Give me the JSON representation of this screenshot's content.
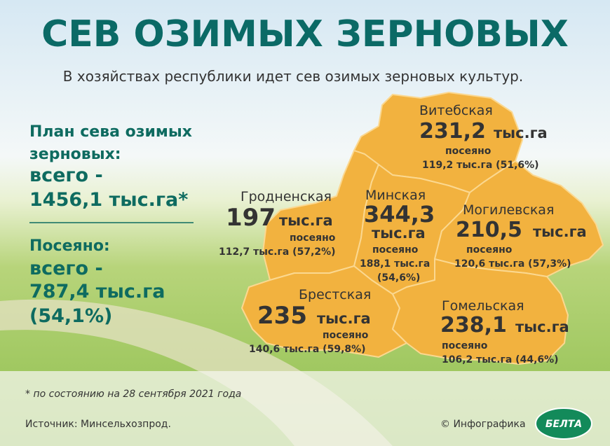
{
  "header": {
    "title": "СЕВ ОЗИМЫХ ЗЕРНОВЫХ",
    "subtitle": "В хозяйствах республики идет сев озимых зерновых культур."
  },
  "plan": {
    "lines": [
      "План сева озимых",
      "зерновых:",
      "всего -",
      "1456,1 тыс.га*"
    ]
  },
  "sown": {
    "lines": [
      "Посеяно:",
      "всего -",
      "787,4 тыс.га",
      "(54,1%)"
    ]
  },
  "regions": [
    {
      "name": "Витебская",
      "plan": "231,2",
      "unit": "тыс.га",
      "sown_label": "посеяно",
      "sown": [
        "119,2 тыс.га (51,6%)"
      ]
    },
    {
      "name": "Гродненская",
      "plan": "197",
      "unit": "тыс.га",
      "sown_label": "посеяно",
      "sown": [
        "112,7 тыс.га (57,2%)"
      ]
    },
    {
      "name": "Минская",
      "plan": "344,3",
      "unit": "тыс.га",
      "sown_label": "посеяно",
      "sown": [
        "188,1 тыс.га",
        "(54,6%)"
      ]
    },
    {
      "name": "Могилевская",
      "plan": "210,5",
      "unit": "тыс.га",
      "sown_label": "посеяно",
      "sown": [
        "120,6 тыс.га (57,3%)"
      ]
    },
    {
      "name": "Брестская",
      "plan": "235",
      "unit": "тыс.га",
      "sown_label": "посеяно",
      "sown": [
        "140,6 тыс.га (59,8%)"
      ]
    },
    {
      "name": "Гомельская",
      "plan": "238,1",
      "unit": "тыс.га",
      "sown_label": "посеяно",
      "sown": [
        "106,2 тыс.га (44,6%)"
      ]
    }
  ],
  "footer": {
    "note": "* по состоянию на 28 сентября 2021 года",
    "source": "Источник: Минсельхозпрод.",
    "credit": "© Инфографика",
    "logo": "БЕЛТА"
  }
}
